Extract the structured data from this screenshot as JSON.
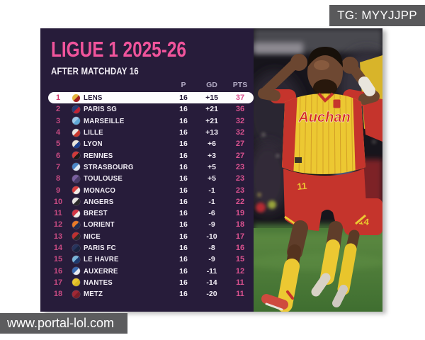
{
  "watermarks": {
    "tg": "TG: MYYJJPP",
    "url": "www.portal-lol.com"
  },
  "photo": {
    "jersey_sponsor": "Auchan",
    "player_number": "11",
    "second_player_number": "14"
  },
  "colors": {
    "background_purple": "#271c3a",
    "title_pink": "#f0549b",
    "rank_pink": "#c64a82",
    "points_pink": "#db5290",
    "highlight_row": "#fdfdfe",
    "watermark_gray": "#59595b"
  },
  "chart_data": {
    "type": "table",
    "title": "LIGUE 1 2025-26",
    "subtitle": "AFTER MATCHDAY 16",
    "columns": [
      "P",
      "GD",
      "PTS"
    ],
    "rows": [
      {
        "rank": "1",
        "team": "LENS",
        "p": "16",
        "gd": "+15",
        "pts": "37",
        "highlight": true,
        "logo": [
          "#e3b53e",
          "#a31e22"
        ]
      },
      {
        "rank": "2",
        "team": "PARIS SG",
        "p": "16",
        "gd": "+21",
        "pts": "36",
        "highlight": false,
        "logo": [
          "#2a3e78",
          "#c22334"
        ]
      },
      {
        "rank": "3",
        "team": "MARSEILLE",
        "p": "16",
        "gd": "+21",
        "pts": "32",
        "highlight": false,
        "logo": [
          "#9fc9e8",
          "#5fa8d6"
        ]
      },
      {
        "rank": "4",
        "team": "LILLE",
        "p": "16",
        "gd": "+13",
        "pts": "32",
        "highlight": false,
        "logo": [
          "#e8e5e0",
          "#c8372d"
        ]
      },
      {
        "rank": "5",
        "team": "LYON",
        "p": "16",
        "gd": "+6",
        "pts": "27",
        "highlight": false,
        "logo": [
          "#e9e5da",
          "#1a3e8c"
        ]
      },
      {
        "rank": "6",
        "team": "RENNES",
        "p": "16",
        "gd": "+3",
        "pts": "27",
        "highlight": false,
        "logo": [
          "#d03a3a",
          "#1a1a1a"
        ]
      },
      {
        "rank": "7",
        "team": "STRASBOURG",
        "p": "16",
        "gd": "+5",
        "pts": "23",
        "highlight": false,
        "logo": [
          "#4a86c8",
          "#dfe8f2"
        ]
      },
      {
        "rank": "8",
        "team": "TOULOUSE",
        "p": "16",
        "gd": "+5",
        "pts": "23",
        "highlight": false,
        "logo": [
          "#7a5fa0",
          "#4a3b68"
        ]
      },
      {
        "rank": "9",
        "team": "MONACO",
        "p": "16",
        "gd": "-1",
        "pts": "23",
        "highlight": false,
        "logo": [
          "#d84040",
          "#f0ece6"
        ]
      },
      {
        "rank": "10",
        "team": "ANGERS",
        "p": "16",
        "gd": "-1",
        "pts": "22",
        "highlight": false,
        "logo": [
          "#e8e6e2",
          "#2a2a2a"
        ]
      },
      {
        "rank": "11",
        "team": "BREST",
        "p": "16",
        "gd": "-6",
        "pts": "19",
        "highlight": false,
        "logo": [
          "#d23545",
          "#f0ece6"
        ]
      },
      {
        "rank": "12",
        "team": "LORIENT",
        "p": "16",
        "gd": "-9",
        "pts": "18",
        "highlight": false,
        "logo": [
          "#e87a28",
          "#1f2d52"
        ]
      },
      {
        "rank": "13",
        "team": "NICE",
        "p": "16",
        "gd": "-10",
        "pts": "17",
        "highlight": false,
        "logo": [
          "#c03030",
          "#2a2a2a"
        ]
      },
      {
        "rank": "14",
        "team": "PARIS FC",
        "p": "16",
        "gd": "-8",
        "pts": "16",
        "highlight": false,
        "logo": [
          "#28355e",
          "#1b2440"
        ]
      },
      {
        "rank": "15",
        "team": "LE HAVRE",
        "p": "16",
        "gd": "-9",
        "pts": "15",
        "highlight": false,
        "logo": [
          "#7ab4d8",
          "#1e3a6e"
        ]
      },
      {
        "rank": "16",
        "team": "AUXERRE",
        "p": "16",
        "gd": "-11",
        "pts": "12",
        "highlight": false,
        "logo": [
          "#3a6ab0",
          "#e8eaf0"
        ]
      },
      {
        "rank": "17",
        "team": "NANTES",
        "p": "16",
        "gd": "-14",
        "pts": "11",
        "highlight": false,
        "logo": [
          "#eac832",
          "#d8b820"
        ]
      },
      {
        "rank": "18",
        "team": "METZ",
        "p": "16",
        "gd": "-20",
        "pts": "11",
        "highlight": false,
        "logo": [
          "#a02835",
          "#7a1e28"
        ]
      }
    ]
  }
}
